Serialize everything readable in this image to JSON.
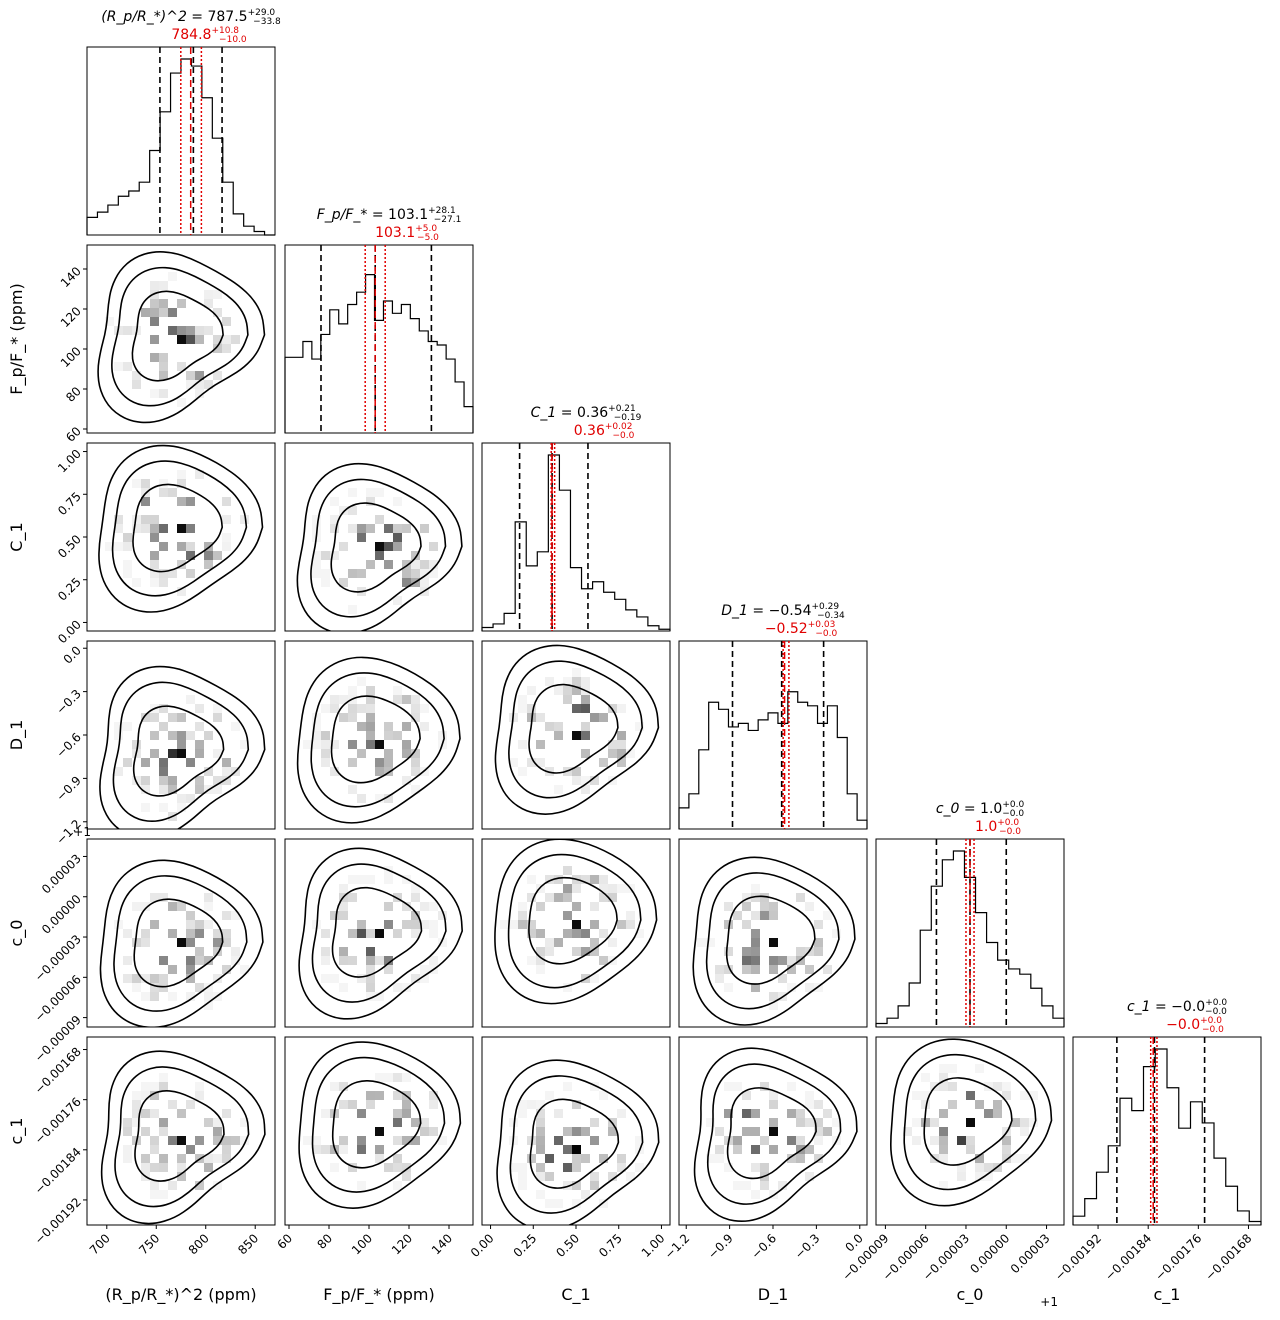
{
  "chart_data": {
    "type": "corner",
    "parameters": [
      {
        "symbol_html": "(R<tspan font-style=\"italic\">p</tspan>/R<tspan font-size=\"10\">*</tspan>)<tspan font-size=\"10\" dy=\"-6\">2</tspan>",
        "axis_label": "(R_p/R_*)^2 (ppm)",
        "title_symbol": "(R_p/R_*)^2",
        "median": "787.5",
        "upper_err": "+29.0",
        "lower_err": "−33.8",
        "red_value": "784.8",
        "red_upper": "+10.8",
        "red_lower": "−10.0",
        "range": [
          680,
          870
        ],
        "ticks": [
          "700",
          "750",
          "800",
          "850"
        ],
        "tick_values": [
          700,
          750,
          800,
          850
        ],
        "offset_text": "",
        "quantiles": [
          753.7,
          787.5,
          816.5
        ],
        "red_lines": [
          774.8,
          784.8,
          795.6
        ],
        "hist": [
          0.1,
          0.13,
          0.17,
          0.22,
          0.25,
          0.3,
          0.48,
          0.7,
          0.92,
          1.0,
          0.96,
          0.78,
          0.55,
          0.3,
          0.12,
          0.05,
          0.02,
          0.0
        ]
      },
      {
        "axis_label": "F_p/F_* (ppm)",
        "title_symbol": "F_p/F_*",
        "median": "103.1",
        "upper_err": "+28.1",
        "lower_err": "−27.1",
        "red_value": "103.1",
        "red_upper": "+5.0",
        "red_lower": "−5.0",
        "range": [
          58,
          152
        ],
        "ticks": [
          "60",
          "80",
          "100",
          "120",
          "140"
        ],
        "tick_values": [
          60,
          80,
          100,
          120,
          140
        ],
        "offset_text": "",
        "quantiles": [
          76.0,
          103.1,
          131.2
        ],
        "red_lines": [
          98.1,
          103.1,
          108.1
        ],
        "hist": [
          0.43,
          0.43,
          0.52,
          0.42,
          0.56,
          0.7,
          0.62,
          0.73,
          0.8,
          0.9,
          0.64,
          0.75,
          0.68,
          0.73,
          0.65,
          0.58,
          0.52,
          0.5,
          0.42,
          0.29,
          0.15
        ]
      },
      {
        "axis_label": "C_1",
        "title_symbol": "C_1",
        "median": "0.36",
        "upper_err": "+0.21",
        "lower_err": "−0.19",
        "red_value": "0.36",
        "red_upper": "+0.02",
        "red_lower": "−0.0",
        "range": [
          -0.05,
          1.05
        ],
        "ticks": [
          "0.00",
          "0.25",
          "0.50",
          "0.75",
          "1.00"
        ],
        "tick_values": [
          0,
          0.25,
          0.5,
          0.75,
          1.0
        ],
        "offset_text": "",
        "quantiles": [
          0.17,
          0.36,
          0.57
        ],
        "red_lines": [
          0.355,
          0.36,
          0.375
        ],
        "hist": [
          0.02,
          0.04,
          0.1,
          0.62,
          0.37,
          0.45,
          1.0,
          0.8,
          0.36,
          0.24,
          0.28,
          0.22,
          0.18,
          0.12,
          0.08,
          0.03,
          0.01
        ]
      },
      {
        "axis_label": "D_1",
        "title_symbol": "D_1",
        "median": "−0.54",
        "upper_err": "+0.29",
        "lower_err": "−0.34",
        "red_value": "−0.52",
        "red_upper": "+0.03",
        "red_lower": "−0.0",
        "range": [
          -1.25,
          0.05
        ],
        "ticks": [
          "−1.2",
          "−0.9",
          "−0.6",
          "−0.3",
          "0.0"
        ],
        "tick_values": [
          -1.2,
          -0.9,
          -0.6,
          -0.3,
          0.0
        ],
        "offset_text": "",
        "quantiles": [
          -0.88,
          -0.54,
          -0.25
        ],
        "red_lines": [
          -0.53,
          -0.52,
          -0.49
        ],
        "hist": [
          0.12,
          0.2,
          0.45,
          0.72,
          0.68,
          0.58,
          0.6,
          0.56,
          0.62,
          0.66,
          0.6,
          0.78,
          0.72,
          0.7,
          0.6,
          0.7,
          0.52,
          0.2,
          0.05
        ]
      },
      {
        "axis_label": "c_0",
        "title_symbol": "c_0",
        "median": "1.0",
        "upper_err": "+0.0",
        "lower_err": "−0.0",
        "red_value": "1.0",
        "red_upper": "+0.0",
        "red_lower": "−0.0",
        "range": [
          -9.7e-05,
          4.3e-05
        ],
        "ticks": [
          "−0.00009",
          "−0.00006",
          "−0.00003",
          "0.00000",
          "0.00003"
        ],
        "tick_values": [
          -9e-05,
          -6e-05,
          -3e-05,
          0.0,
          3e-05
        ],
        "offset_text": "+1",
        "quantiles": [
          -5.2e-05,
          -2.7e-05,
          0.0
        ],
        "red_lines": [
          -3e-05,
          -2.7e-05,
          -2.4e-05
        ],
        "hist": [
          0.02,
          0.05,
          0.12,
          0.25,
          0.55,
          0.8,
          0.95,
          1.0,
          0.85,
          0.65,
          0.48,
          0.38,
          0.33,
          0.3,
          0.22,
          0.12,
          0.05
        ]
      },
      {
        "axis_label": "c_1",
        "title_symbol": "c_1",
        "median": "−0.0",
        "upper_err": "+0.0",
        "lower_err": "−0.0",
        "red_value": "−0.0",
        "red_upper": "+0.0",
        "red_lower": "−0.0",
        "range": [
          -0.00196,
          -0.00166
        ],
        "ticks": [
          "−0.00192",
          "−0.00184",
          "−0.00176",
          "−0.00168"
        ],
        "tick_values": [
          -0.00192,
          -0.00184,
          -0.00176,
          -0.00168
        ],
        "offset_text": "",
        "quantiles": [
          -0.00189,
          -0.00183,
          -0.00175
        ],
        "red_lines": [
          -0.001836,
          -0.001832,
          -0.001826
        ],
        "hist": [
          0.05,
          0.15,
          0.3,
          0.45,
          0.72,
          0.65,
          0.9,
          1.0,
          0.78,
          0.55,
          0.7,
          0.58,
          0.38,
          0.22,
          0.08,
          0.02
        ]
      }
    ],
    "colors": {
      "median_lines": "#000000",
      "red_lines": "#e00000",
      "contours": "#000000",
      "density": "#000000"
    },
    "contour_levels": [
      "1σ",
      "2σ",
      "3σ"
    ]
  }
}
